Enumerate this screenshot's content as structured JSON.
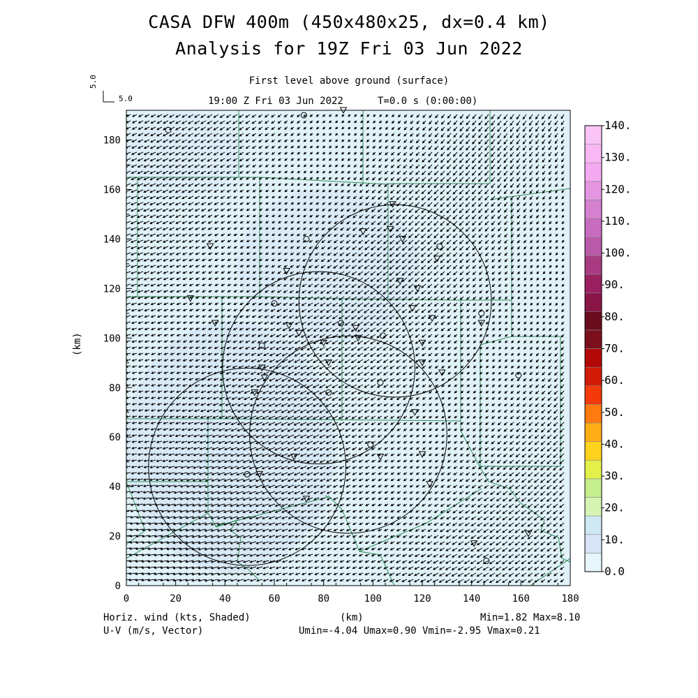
{
  "header": {
    "title_line1": "CASA DFW 400m (450x480x25, dx=0.4 km)",
    "title_line2": "Analysis for 19Z Fri 03 Jun 2022",
    "subtitle": "First level above ground (surface)",
    "valid_time": "19:00 Z Fri 03 Jun 2022",
    "elapsed": "T=0.0 s (0:00:00)",
    "vector_ref_vertical": "5.0",
    "vector_ref_horizontal": "5.0"
  },
  "footer": {
    "field_label": "Horiz. wind (kts, Shaded)",
    "vector_label": "U-V (m/s, Vector)",
    "x_unit": "(km)",
    "min_max": "Min=1.82 Max=8.10",
    "uv_range": "Umin=-4.04 Umax=0.90 Vmin=-2.95 Vmax=0.21"
  },
  "chart_data": {
    "type": "heatmap",
    "xlabel": "(km)",
    "ylabel": "(km)",
    "xlim": [
      0,
      180
    ],
    "ylim": [
      0,
      192
    ],
    "x_ticks": [
      0,
      20,
      40,
      60,
      80,
      100,
      120,
      140,
      160,
      180
    ],
    "y_ticks": [
      0,
      20,
      40,
      60,
      80,
      100,
      120,
      140,
      160,
      180
    ],
    "field_min": 1.82,
    "field_max": 8.1,
    "umin": -4.04,
    "umax": 0.9,
    "vmin": -2.95,
    "vmax": 0.21,
    "colorbar": {
      "levels": [
        "0.0",
        "10.",
        "20.",
        "30.",
        "40.",
        "50.",
        "60.",
        "70.",
        "80.",
        "90.",
        "100.",
        "110.",
        "120.",
        "130.",
        "140."
      ],
      "colors": [
        "#e6f6fb",
        "#d8e4f8",
        "#cfe8f2",
        "#d6f5b5",
        "#c6ef8e",
        "#e4f04a",
        "#ffd21e",
        "#ffad14",
        "#ff7a0f",
        "#f43a0a",
        "#d11b06",
        "#b30808",
        "#7c0f1e",
        "#6a0b1e",
        "#8a1648",
        "#9a2062",
        "#a83a82",
        "#b95aa8",
        "#c86cc0",
        "#d680d0",
        "#e596e0",
        "#f4aaf0",
        "#f7b8f4",
        "#fac4f7"
      ]
    },
    "radar_rings": [
      {
        "cx": 78,
        "cy": 88,
        "r": 39
      },
      {
        "cx": 109,
        "cy": 115,
        "r": 39
      },
      {
        "cx": 90,
        "cy": 61,
        "r": 40
      },
      {
        "cx": 49,
        "cy": 48,
        "r": 40
      }
    ],
    "stations_circle": [
      [
        17,
        184
      ],
      [
        72,
        190
      ],
      [
        73,
        140
      ],
      [
        60,
        114
      ],
      [
        55,
        97
      ],
      [
        87,
        106
      ],
      [
        104,
        101
      ],
      [
        103,
        82
      ],
      [
        82,
        78
      ],
      [
        99,
        57
      ],
      [
        49,
        45
      ],
      [
        127,
        137
      ],
      [
        144,
        110
      ],
      [
        159,
        85
      ],
      [
        146,
        10
      ]
    ],
    "stations_triangle": [
      [
        34,
        137
      ],
      [
        26,
        116
      ],
      [
        36,
        106
      ],
      [
        65,
        127
      ],
      [
        66,
        105
      ],
      [
        70,
        102
      ],
      [
        55,
        88
      ],
      [
        56,
        84
      ],
      [
        52,
        78
      ],
      [
        80,
        98
      ],
      [
        82,
        90
      ],
      [
        93,
        104
      ],
      [
        94,
        100
      ],
      [
        108,
        154
      ],
      [
        96,
        143
      ],
      [
        107,
        144
      ],
      [
        112,
        140
      ],
      [
        111,
        123
      ],
      [
        118,
        120
      ],
      [
        116,
        112
      ],
      [
        124,
        108
      ],
      [
        120,
        98
      ],
      [
        120,
        90
      ],
      [
        128,
        86
      ],
      [
        126,
        132
      ],
      [
        117,
        70
      ],
      [
        120,
        53
      ],
      [
        123,
        41
      ],
      [
        103,
        52
      ],
      [
        68,
        52
      ],
      [
        73,
        35
      ],
      [
        54,
        45
      ],
      [
        88,
        192
      ],
      [
        144,
        106
      ],
      [
        141,
        17
      ],
      [
        163,
        21
      ]
    ]
  }
}
